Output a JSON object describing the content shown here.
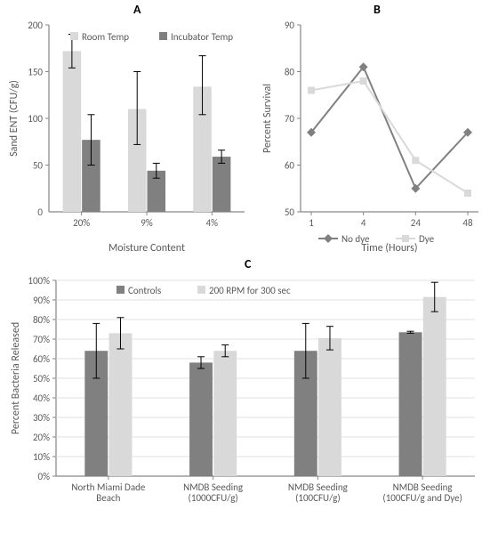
{
  "colors": {
    "light": "#d9d9d9",
    "dark": "#808080",
    "axis": "#868686",
    "text": "#595959",
    "title": "#000000",
    "grid": "#d9d9d9"
  },
  "panelA": {
    "title": "A",
    "type": "bar",
    "ylabel": "Sand ENT (CFU/g)",
    "xlabel": "Moisture Content",
    "ylim": [
      0,
      200
    ],
    "ytick_step": 50,
    "categories": [
      "20%",
      "9%",
      "4%"
    ],
    "series": [
      {
        "name": "Room Temp",
        "color": "#d9d9d9",
        "values": [
          172,
          110,
          134
        ],
        "err": [
          [
            18,
            18
          ],
          [
            40,
            38
          ],
          [
            33,
            30
          ]
        ]
      },
      {
        "name": "Incubator Temp",
        "color": "#808080",
        "values": [
          77,
          44,
          59
        ],
        "err": [
          [
            27,
            27
          ],
          [
            8,
            8
          ],
          [
            7,
            7
          ]
        ]
      }
    ]
  },
  "panelB": {
    "title": "B",
    "type": "line",
    "ylabel": "Percent Survival",
    "xlabel": "Time (Hours)",
    "ylim": [
      50,
      90
    ],
    "ytick_step": 10,
    "x_categories": [
      "1",
      "4",
      "24",
      "48"
    ],
    "series": [
      {
        "name": "No dye",
        "color": "#808080",
        "marker": "diamond",
        "values": [
          67,
          81,
          55,
          67
        ]
      },
      {
        "name": "Dye",
        "color": "#d9d9d9",
        "marker": "square",
        "values": [
          76,
          78,
          61,
          54
        ]
      }
    ]
  },
  "panelC": {
    "title": "C",
    "type": "bar",
    "ylabel": "Percent Bacteria Released",
    "ylim": [
      0,
      1.0
    ],
    "ytick_step": 0.1,
    "ytick_format": "percent",
    "categories": [
      "North Miami Dade\nBeach",
      "NMDB Seeding\n(1000CFU/g)",
      "NMDB Seeding\n(100CFU/g)",
      "NMDB Seeding\n(100CFU/g and Dye)"
    ],
    "series": [
      {
        "name": "Controls",
        "color": "#808080",
        "values": [
          0.64,
          0.58,
          0.64,
          0.735
        ],
        "err": [
          [
            0.14,
            0.14
          ],
          [
            0.03,
            0.03
          ],
          [
            0.14,
            0.14
          ],
          [
            0.005,
            0.005
          ]
        ]
      },
      {
        "name": "200 RPM for 300 sec",
        "color": "#d9d9d9",
        "values": [
          0.73,
          0.64,
          0.705,
          0.915
        ],
        "err": [
          [
            0.08,
            0.08
          ],
          [
            0.03,
            0.03
          ],
          [
            0.06,
            0.06
          ],
          [
            0.075,
            0.075
          ]
        ]
      }
    ]
  }
}
